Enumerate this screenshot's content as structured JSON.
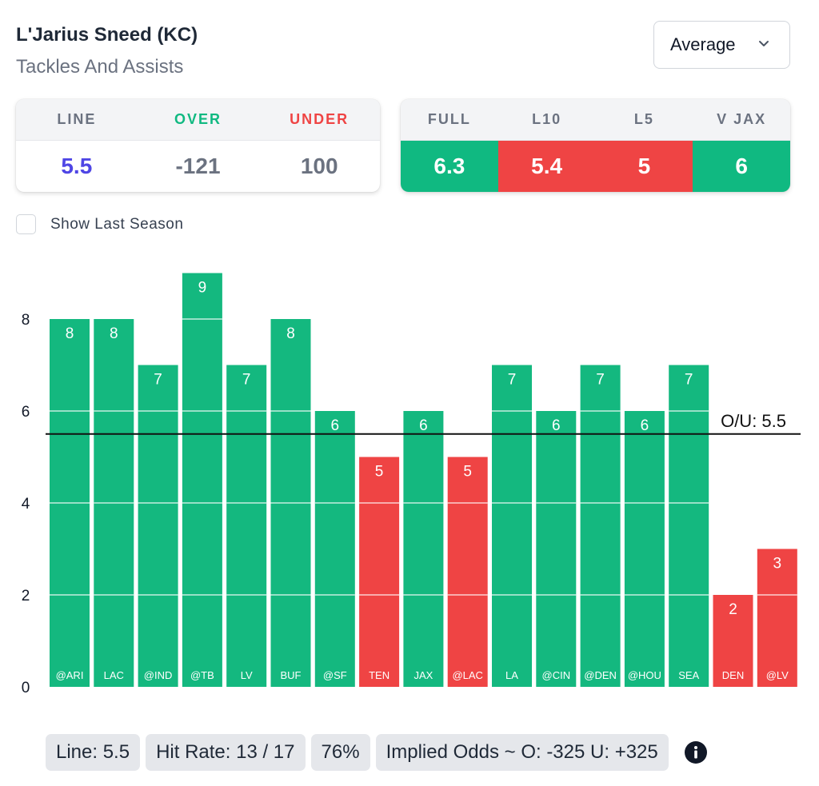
{
  "header": {
    "player_name": "L'Jarius Sneed (KC)",
    "stat_name": "Tackles And Assists"
  },
  "dropdown": {
    "selected": "Average"
  },
  "line_card": {
    "headers": [
      "LINE",
      "OVER",
      "UNDER"
    ],
    "values": [
      "5.5",
      "-121",
      "100"
    ],
    "header_colors": [
      "#6b7280",
      "#10b981",
      "#ef4444"
    ],
    "value_colors": [
      "#4f46e5",
      "#6b7280",
      "#6b7280"
    ]
  },
  "avg_card": {
    "headers": [
      "FULL",
      "L10",
      "L5",
      "V JAX"
    ],
    "values": [
      "6.3",
      "5.4",
      "5",
      "6"
    ],
    "value_bg": [
      "#10b981",
      "#ef4444",
      "#ef4444",
      "#10b981"
    ]
  },
  "show_last_season": {
    "label": "Show Last Season",
    "checked": false
  },
  "chart_data": {
    "type": "bar",
    "categories": [
      "@ARI",
      "LAC",
      "@IND",
      "@TB",
      "LV",
      "BUF",
      "@SF",
      "TEN",
      "JAX",
      "@LAC",
      "LA",
      "@CIN",
      "@DEN",
      "@HOU",
      "SEA",
      "DEN",
      "@LV"
    ],
    "values": [
      8,
      8,
      7,
      9,
      7,
      8,
      6,
      5,
      6,
      5,
      7,
      6,
      7,
      6,
      7,
      2,
      3
    ],
    "ylim": [
      0,
      9
    ],
    "yticks": [
      0,
      2,
      4,
      6,
      8
    ],
    "line_value": 5.5,
    "line_label": "O/U: 5.5",
    "colors": {
      "over": "#14b87f",
      "under": "#ef4444"
    }
  },
  "footer": {
    "line": "Line: 5.5",
    "hit_rate": "Hit Rate: 13 / 17",
    "percent": "76%",
    "implied_odds": "Implied Odds ~ O: -325 U: +325"
  }
}
